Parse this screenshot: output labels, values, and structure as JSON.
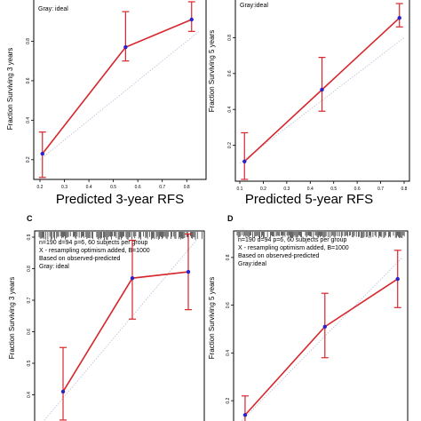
{
  "colors": {
    "line": "#d7262b",
    "point": "#2b22c8",
    "ideal": "#b9bcd6",
    "axis": "#000000"
  },
  "chart_data": [
    {
      "type": "line",
      "panel_label": "",
      "ylabel": "Fraction Surviving 3 years",
      "xlabel": "Predicted  3-year RFS",
      "xlim": [
        0.2,
        0.85
      ],
      "ylim": [
        0.1,
        1.0
      ],
      "x_ticks": [
        0.2,
        0.3,
        0.4,
        0.5,
        0.6,
        0.7,
        0.8
      ],
      "x_tick_labels": [
        "0.2",
        "0.3",
        "0.4",
        "0.5",
        "0.6",
        "0.7",
        "0.8"
      ],
      "y_ticks": [
        0.2,
        0.4,
        0.6,
        0.8
      ],
      "y_tick_labels": [
        "0.2",
        "0.4",
        "0.6",
        "0.8"
      ],
      "annotations": [
        "Gray: ideal"
      ],
      "rug": false,
      "ideal_line": true,
      "series": [
        {
          "x": [
            0.21,
            0.55,
            0.82
          ],
          "y": [
            0.23,
            0.77,
            0.91
          ],
          "ci_low": [
            0.11,
            0.7,
            0.85
          ],
          "ci_high": [
            0.34,
            0.95,
            1.0
          ]
        }
      ]
    },
    {
      "type": "line",
      "panel_label": "",
      "ylabel": "Fraction Surviving 5 years",
      "xlabel": "Predicted  5-year RFS",
      "xlim": [
        0.1,
        0.8
      ],
      "ylim": [
        0.0,
        1.0
      ],
      "x_ticks": [
        0.1,
        0.2,
        0.3,
        0.4,
        0.5,
        0.6,
        0.7,
        0.8
      ],
      "x_tick_labels": [
        "0.1",
        "0.2",
        "0.3",
        "0.4",
        "0.5",
        "0.6",
        "0.7",
        "0.8"
      ],
      "y_ticks": [
        0.2,
        0.4,
        0.6,
        0.8
      ],
      "y_tick_labels": [
        "0.2",
        "0.4",
        "0.6",
        "0.8"
      ],
      "annotations": [
        "Gray:ideal"
      ],
      "rug": false,
      "ideal_line": true,
      "series": [
        {
          "x": [
            0.12,
            0.45,
            0.78
          ],
          "y": [
            0.11,
            0.51,
            0.91
          ],
          "ci_low": [
            0.01,
            0.39,
            0.86
          ],
          "ci_high": [
            0.27,
            0.69,
            0.99
          ]
        }
      ]
    },
    {
      "type": "line",
      "panel_label": "C",
      "ylabel": "Fraction Surviving 3 years",
      "xlabel": "",
      "xlim": [
        0.3,
        0.9
      ],
      "ylim": [
        0.3,
        0.9
      ],
      "x_ticks": [],
      "x_tick_labels": [],
      "y_ticks": [
        0.4,
        0.5,
        0.6,
        0.7,
        0.8,
        0.9
      ],
      "y_tick_labels": [
        "0.4",
        "0.5",
        "0.6",
        "0.7",
        "0.8",
        "0.9"
      ],
      "annotations": [
        "n=190 d=94 p=6, 60 subjects per group",
        "X - resampling optimism added, B=1000",
        "Based on observed-predicted",
        "Gray: ideal"
      ],
      "rug": true,
      "ideal_line": true,
      "series": [
        {
          "x": [
            0.39,
            0.65,
            0.86
          ],
          "y": [
            0.41,
            0.77,
            0.79
          ],
          "ci_low": [
            0.32,
            0.64,
            0.67
          ],
          "ci_high": [
            0.55,
            0.89,
            0.91
          ]
        }
      ]
    },
    {
      "type": "line",
      "panel_label": "D",
      "ylabel": "Fraction Surviving 5 years",
      "xlabel": "",
      "xlim": [
        0.1,
        0.8
      ],
      "ylim": [
        0.1,
        0.9
      ],
      "x_ticks": [],
      "x_tick_labels": [],
      "y_ticks": [
        0.2,
        0.4,
        0.6,
        0.8
      ],
      "y_tick_labels": [
        "0.2",
        "0.4",
        "0.6",
        "0.8"
      ],
      "annotations": [
        "n=190 d=94 p=6, 60 subjects per group",
        "X - resampling optimism added, B=1000",
        "Based on observed-predicted",
        "Gray:ideal"
      ],
      "rug": true,
      "ideal_line": true,
      "series": [
        {
          "x": [
            0.13,
            0.47,
            0.78
          ],
          "y": [
            0.14,
            0.51,
            0.71
          ],
          "ci_low": [
            0.09,
            0.38,
            0.59
          ],
          "ci_high": [
            0.22,
            0.65,
            0.83
          ]
        }
      ]
    }
  ]
}
